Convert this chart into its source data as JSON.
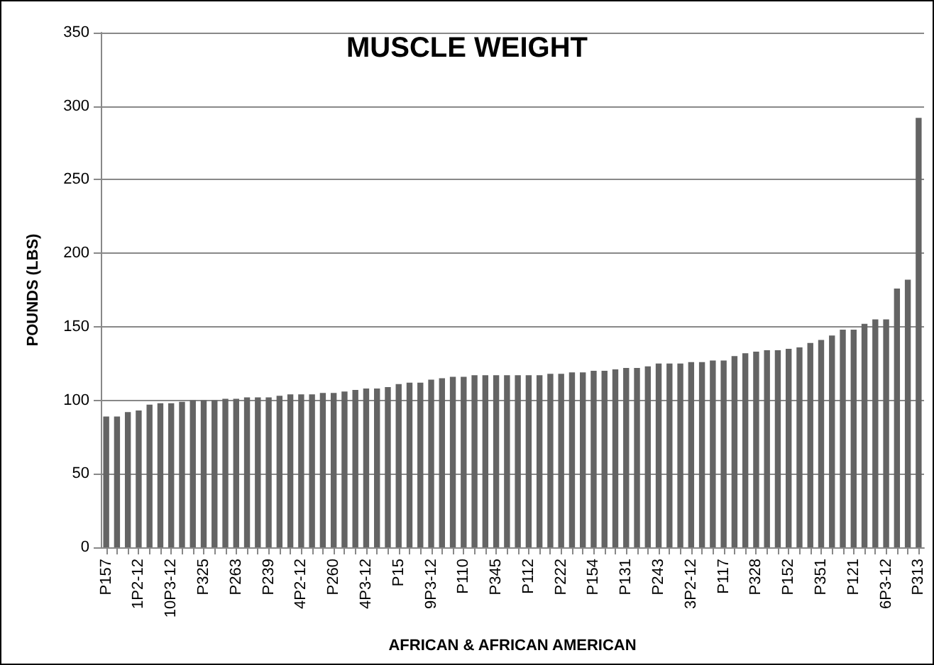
{
  "chart_data": {
    "type": "bar",
    "title": "MUSCLE WEIGHT",
    "xlabel": "AFRICAN & AFRICAN AMERICAN",
    "ylabel": "POUNDS (LBS)",
    "categories": [
      "P157",
      null,
      null,
      "1P2-12",
      null,
      null,
      "10P3-12",
      null,
      null,
      "P325",
      null,
      null,
      "P263",
      null,
      null,
      "P239",
      null,
      null,
      "4P2-12",
      null,
      null,
      "P260",
      null,
      null,
      "4P3-12",
      null,
      null,
      "P15",
      null,
      null,
      "9P3-12",
      null,
      null,
      "P110",
      null,
      null,
      "P345",
      null,
      null,
      "P112",
      null,
      null,
      "P222",
      null,
      null,
      "P154",
      null,
      null,
      "P131",
      null,
      null,
      "P243",
      null,
      null,
      "3P2-12",
      null,
      null,
      "P117",
      null,
      null,
      "P328",
      null,
      null,
      "P152",
      null,
      null,
      "P351",
      null,
      null,
      "P121",
      null,
      null,
      "6P3-12",
      null,
      null,
      "P313"
    ],
    "values": [
      89,
      89,
      92,
      93,
      97,
      98,
      98,
      99,
      100,
      100,
      100,
      101,
      101,
      102,
      102,
      102,
      103,
      104,
      104,
      104,
      105,
      105,
      106,
      107,
      108,
      108,
      109,
      111,
      112,
      112,
      114,
      115,
      116,
      116,
      117,
      117,
      117,
      117,
      117,
      117,
      117,
      118,
      118,
      119,
      119,
      120,
      120,
      121,
      122,
      122,
      123,
      125,
      125,
      125,
      126,
      126,
      127,
      127,
      130,
      132,
      133,
      134,
      134,
      135,
      136,
      139,
      141,
      144,
      148,
      148,
      152,
      155,
      155,
      176,
      182,
      292
    ],
    "color": "#646464",
    "ylim": [
      0,
      350
    ],
    "yticks": [
      0,
      50,
      100,
      150,
      200,
      250,
      300,
      350
    ],
    "grid": "y"
  }
}
